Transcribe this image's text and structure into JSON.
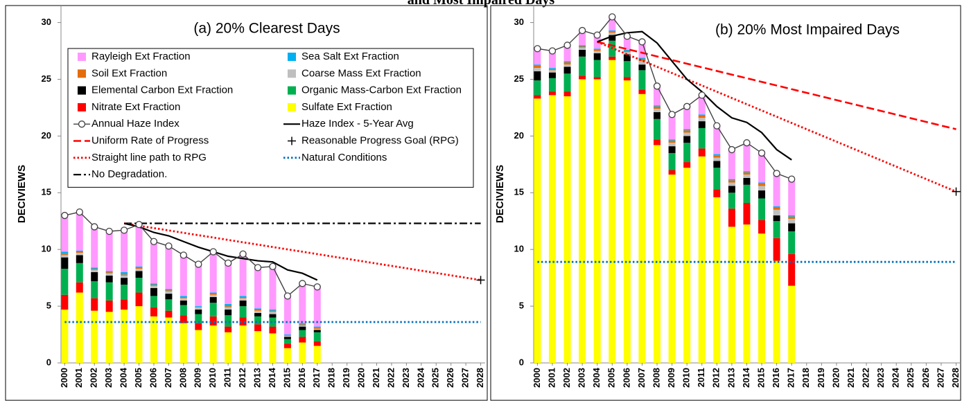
{
  "title": "and Most Impaired Days",
  "chart_data": [
    {
      "type": "bar",
      "title": "(a) 20% Clearest Days",
      "y_label": "DECIVIEWS",
      "x": [
        2000,
        2001,
        2002,
        2003,
        2004,
        2005,
        2006,
        2007,
        2008,
        2009,
        2010,
        2011,
        2012,
        2013,
        2014,
        2015,
        2016,
        2017
      ],
      "xlim": [
        1999.75,
        2028.3
      ],
      "xticks": [
        2000,
        2001,
        2002,
        2003,
        2004,
        2005,
        2006,
        2007,
        2008,
        2009,
        2010,
        2011,
        2012,
        2013,
        2014,
        2015,
        2016,
        2017,
        2018,
        2019,
        2020,
        2021,
        2022,
        2023,
        2024,
        2025,
        2026,
        2027,
        2028
      ],
      "ylim": [
        0,
        31.5
      ],
      "yticks": [
        0,
        5,
        10,
        15,
        20,
        25,
        30
      ],
      "legend": {
        "position": "upper left",
        "entries": [
          {
            "name": "Rayleigh Ext Fraction",
            "kind": "bar",
            "color": "#ff99ff"
          },
          {
            "name": "Sea Salt Ext Fraction",
            "kind": "bar",
            "color": "#00b0f0"
          },
          {
            "name": "Soil Ext Fraction",
            "kind": "bar",
            "color": "#e46c0a"
          },
          {
            "name": "Coarse Mass Ext Fraction",
            "kind": "bar",
            "color": "#bfbfbf"
          },
          {
            "name": "Elemental Carbon Ext Fraction",
            "kind": "bar",
            "color": "#000000"
          },
          {
            "name": "Organic Mass-Carbon Ext Fraction",
            "kind": "bar",
            "color": "#00b050"
          },
          {
            "name": "Nitrate Ext Fraction",
            "kind": "bar",
            "color": "#ff0000"
          },
          {
            "name": "Sulfate Ext Fraction",
            "kind": "bar",
            "color": "#ffff00"
          },
          {
            "name": "Annual Haze Index",
            "kind": "line",
            "color": "#404040",
            "dash": "solid",
            "marker": "circle"
          },
          {
            "name": "Haze Index - 5-Year Avg",
            "kind": "line",
            "color": "#000000",
            "dash": "solid"
          },
          {
            "name": "Uniform Rate of Progress",
            "kind": "line",
            "color": "#ff0000",
            "dash": "dashed"
          },
          {
            "name": "Reasonable Progress Goal (RPG)",
            "kind": "marker",
            "color": "#000000",
            "marker": "plus"
          },
          {
            "name": "Straight line path to RPG",
            "kind": "line",
            "color": "#ff0000",
            "dash": "dotted"
          },
          {
            "name": "Natural Conditions",
            "kind": "line",
            "color": "#0070c0",
            "dash": "dotted"
          },
          {
            "name": "No Degradation.",
            "kind": "line",
            "color": "#000000",
            "dash": "dashdot"
          }
        ]
      },
      "series": [
        {
          "kind": "bar",
          "color": "#ffff00",
          "values": [
            4.7,
            6.2,
            4.6,
            4.5,
            4.7,
            5.0,
            4.1,
            4.0,
            3.5,
            2.9,
            3.3,
            2.7,
            3.3,
            2.8,
            2.6,
            1.3,
            1.8,
            1.5
          ]
        },
        {
          "kind": "bar",
          "color": "#ff0000",
          "values": [
            1.3,
            0.9,
            1.1,
            1.0,
            0.9,
            1.2,
            0.8,
            0.6,
            0.7,
            0.6,
            0.8,
            0.5,
            0.7,
            0.6,
            0.6,
            0.4,
            0.5,
            0.4
          ]
        },
        {
          "kind": "bar",
          "color": "#00b050",
          "values": [
            2.3,
            1.7,
            1.5,
            1.6,
            1.3,
            1.3,
            1.0,
            1.0,
            0.9,
            0.8,
            1.2,
            1.0,
            1.0,
            0.7,
            0.8,
            0.4,
            0.6,
            0.8
          ]
        },
        {
          "kind": "bar",
          "color": "#000000",
          "values": [
            1.0,
            0.7,
            0.8,
            0.6,
            0.6,
            0.6,
            0.7,
            0.5,
            0.4,
            0.4,
            0.5,
            0.5,
            0.5,
            0.3,
            0.3,
            0.2,
            0.3,
            0.2
          ]
        },
        {
          "kind": "bar",
          "color": "#bfbfbf",
          "values": [
            0.2,
            0.2,
            0.2,
            0.2,
            0.2,
            0.2,
            0.2,
            0.2,
            0.2,
            0.2,
            0.2,
            0.2,
            0.2,
            0.2,
            0.2,
            0.1,
            0.1,
            0.1
          ]
        },
        {
          "kind": "bar",
          "color": "#e46c0a",
          "values": [
            0.1,
            0.1,
            0.1,
            0.1,
            0.1,
            0.1,
            0.1,
            0.1,
            0.1,
            0.0,
            0.1,
            0.1,
            0.1,
            0.1,
            0.1,
            0.0,
            0.1,
            0.1
          ]
        },
        {
          "kind": "bar",
          "color": "#00b0f0",
          "values": [
            0.2,
            0.1,
            0.1,
            0.1,
            0.2,
            0.1,
            0.1,
            0.1,
            0.1,
            0.1,
            0.1,
            0.2,
            0.1,
            0.1,
            0.1,
            0.1,
            0.1,
            0.1
          ]
        },
        {
          "kind": "bar",
          "color": "#ff99ff",
          "values": [
            3.2,
            3.4,
            3.6,
            3.5,
            3.7,
            3.7,
            3.7,
            3.8,
            3.6,
            3.7,
            3.6,
            3.6,
            3.7,
            3.6,
            3.8,
            3.4,
            3.5,
            3.5
          ]
        },
        {
          "kind": "line",
          "color": "#0070c0",
          "dash": "dotted",
          "x": [
            2000,
            2028
          ],
          "values": [
            3.6,
            3.6
          ]
        },
        {
          "kind": "line",
          "color": "#000000",
          "dash": "dashdot",
          "x": [
            2004,
            2028
          ],
          "values": [
            12.3,
            12.3
          ]
        },
        {
          "kind": "line",
          "color": "#ff0000",
          "dash": "dotted",
          "x": [
            2004,
            2028
          ],
          "values": [
            12.3,
            7.3
          ]
        },
        {
          "kind": "line",
          "color": "#000000",
          "dash": "solid",
          "x": [
            2004,
            2005,
            2006,
            2007,
            2008,
            2009,
            2010,
            2011,
            2012,
            2013,
            2014,
            2015,
            2016,
            2017
          ],
          "values": [
            12.3,
            12.0,
            11.5,
            11.2,
            10.7,
            10.2,
            9.8,
            9.4,
            9.2,
            9.0,
            8.9,
            8.2,
            7.9,
            7.3
          ]
        },
        {
          "kind": "line",
          "color": "#404040",
          "dash": "solid",
          "marker": "circle",
          "values": [
            13.0,
            13.3,
            12.0,
            11.6,
            11.7,
            12.2,
            10.7,
            10.3,
            9.5,
            8.7,
            9.8,
            8.8,
            9.6,
            8.4,
            8.5,
            5.9,
            7.0,
            6.7
          ]
        },
        {
          "kind": "marker",
          "color": "#000000",
          "marker": "plus",
          "x": [
            2028
          ],
          "values": [
            7.3
          ]
        }
      ]
    },
    {
      "type": "bar",
      "title": "(b) 20% Most Impaired Days",
      "y_label": "DECIVIEWS",
      "x": [
        2000,
        2001,
        2002,
        2003,
        2004,
        2005,
        2006,
        2007,
        2008,
        2009,
        2010,
        2011,
        2012,
        2013,
        2014,
        2015,
        2016,
        2017
      ],
      "xlim": [
        1999.75,
        2028.3
      ],
      "xticks": [
        2000,
        2001,
        2002,
        2003,
        2004,
        2005,
        2006,
        2007,
        2008,
        2009,
        2010,
        2011,
        2012,
        2013,
        2014,
        2015,
        2016,
        2017,
        2018,
        2019,
        2020,
        2021,
        2022,
        2023,
        2024,
        2025,
        2026,
        2027,
        2028
      ],
      "ylim": [
        0,
        31.5
      ],
      "yticks": [
        0,
        5,
        10,
        15,
        20,
        25,
        30
      ],
      "series": [
        {
          "kind": "bar",
          "color": "#ffff00",
          "values": [
            23.3,
            23.6,
            23.5,
            25.0,
            25.0,
            26.7,
            24.9,
            23.7,
            19.2,
            16.6,
            17.2,
            18.2,
            14.6,
            12.0,
            12.2,
            11.4,
            9.0,
            6.8
          ]
        },
        {
          "kind": "bar",
          "color": "#ff0000",
          "values": [
            0.3,
            0.3,
            0.4,
            0.3,
            0.2,
            0.3,
            0.3,
            0.4,
            0.5,
            0.4,
            0.5,
            0.7,
            0.7,
            1.6,
            1.9,
            1.2,
            2.0,
            2.8
          ]
        },
        {
          "kind": "bar",
          "color": "#00b050",
          "values": [
            1.3,
            1.2,
            1.6,
            1.7,
            1.5,
            1.4,
            1.4,
            1.7,
            1.8,
            1.5,
            1.7,
            1.8,
            1.9,
            1.4,
            1.6,
            1.9,
            1.5,
            2.0
          ]
        },
        {
          "kind": "bar",
          "color": "#000000",
          "values": [
            0.8,
            0.5,
            0.6,
            0.6,
            0.6,
            0.5,
            0.6,
            0.5,
            0.6,
            0.6,
            0.6,
            0.6,
            0.6,
            0.6,
            0.6,
            0.7,
            0.5,
            0.7
          ]
        },
        {
          "kind": "bar",
          "color": "#bfbfbf",
          "values": [
            0.3,
            0.2,
            0.2,
            0.2,
            0.2,
            0.2,
            0.2,
            0.3,
            0.3,
            0.3,
            0.3,
            0.3,
            0.3,
            0.3,
            0.3,
            0.4,
            0.5,
            0.4
          ]
        },
        {
          "kind": "bar",
          "color": "#e46c0a",
          "values": [
            0.2,
            0.1,
            0.2,
            0.1,
            0.1,
            0.1,
            0.1,
            0.2,
            0.2,
            0.2,
            0.2,
            0.2,
            0.2,
            0.2,
            0.2,
            0.2,
            0.2,
            0.2
          ]
        },
        {
          "kind": "bar",
          "color": "#00b0f0",
          "values": [
            0.1,
            0.1,
            0.1,
            0.1,
            0.1,
            0.1,
            0.1,
            0.1,
            0.1,
            0.1,
            0.1,
            0.1,
            0.1,
            0.1,
            0.1,
            0.1,
            0.1,
            0.1
          ]
        },
        {
          "kind": "bar",
          "color": "#ff99ff",
          "values": [
            1.4,
            1.5,
            1.4,
            1.3,
            1.2,
            1.2,
            1.2,
            1.4,
            1.7,
            2.2,
            2.0,
            1.7,
            2.5,
            2.6,
            2.5,
            2.6,
            2.9,
            3.2
          ]
        },
        {
          "kind": "line",
          "color": "#0070c0",
          "dash": "dotted",
          "x": [
            2000,
            2028
          ],
          "values": [
            8.9,
            8.9
          ]
        },
        {
          "kind": "line",
          "color": "#ff0000",
          "dash": "dashed",
          "x": [
            2004,
            2028
          ],
          "values": [
            28.3,
            20.6
          ]
        },
        {
          "kind": "line",
          "color": "#ff0000",
          "dash": "dotted",
          "x": [
            2004,
            2028
          ],
          "values": [
            28.3,
            15.1
          ]
        },
        {
          "kind": "line",
          "color": "#000000",
          "dash": "solid",
          "x": [
            2004,
            2005,
            2006,
            2007,
            2008,
            2009,
            2010,
            2011,
            2012,
            2013,
            2014,
            2015,
            2016,
            2017
          ],
          "values": [
            28.3,
            28.8,
            29.1,
            29.2,
            28.2,
            26.6,
            25.0,
            23.9,
            22.6,
            21.6,
            21.2,
            20.3,
            18.8,
            17.9
          ]
        },
        {
          "kind": "line",
          "color": "#404040",
          "dash": "solid",
          "marker": "circle",
          "values": [
            27.7,
            27.5,
            28.0,
            29.3,
            28.9,
            30.5,
            28.8,
            28.3,
            24.4,
            21.9,
            22.6,
            23.6,
            20.9,
            18.8,
            19.4,
            18.5,
            16.7,
            16.2
          ]
        },
        {
          "kind": "marker",
          "color": "#000000",
          "marker": "plus",
          "x": [
            2028
          ],
          "values": [
            15.1
          ]
        }
      ]
    }
  ]
}
